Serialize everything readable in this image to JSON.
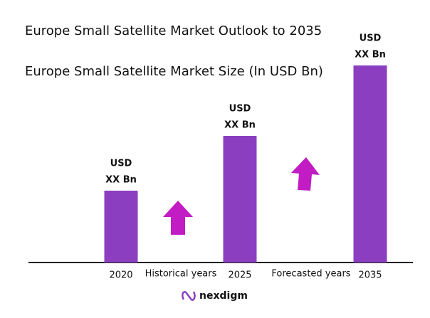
{
  "chart_data": {
    "type": "bar",
    "title": "Europe Small Satellite Market Outlook to 2035",
    "subtitle": "Europe Small Satellite Market Size (In USD Bn)",
    "categories": [
      "2020",
      "2025",
      "2035"
    ],
    "values": [
      101,
      178,
      277
    ],
    "value_labels": [
      [
        "USD",
        "XX Bn"
      ],
      [
        "USD",
        "XX Bn"
      ],
      [
        "USD",
        "XX Bn"
      ]
    ],
    "color": "#8b3fc0",
    "ylim": [
      0,
      300
    ],
    "annotations": [
      "Historical years",
      "Forecasted years"
    ],
    "logo": "nexdigm"
  }
}
